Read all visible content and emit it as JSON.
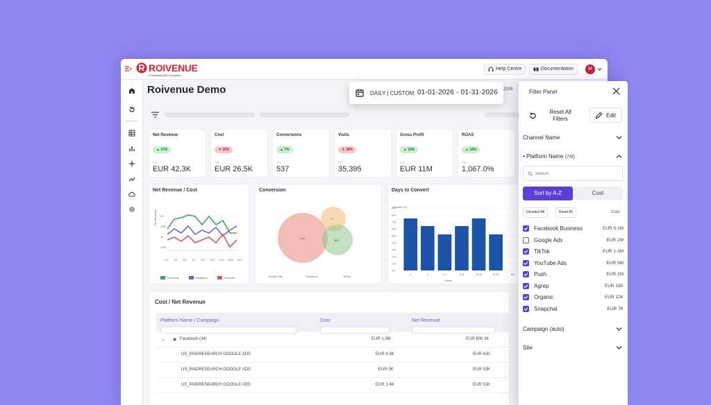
{
  "brand": {
    "name": "ROIVENUE",
    "tagline": "A ScanmarQED Company"
  },
  "header": {
    "help_label": "Help Centre",
    "docs_label": "Documentation",
    "avatar_initial": "M"
  },
  "page": {
    "title": "Roivenue Demo",
    "date_suffix": "2026"
  },
  "date_picker": {
    "mode": "DAILY | CUSTOM",
    "range": "01-01-2026 - 01-31-2026"
  },
  "kpis": [
    {
      "title": "Net Revenue",
      "change": "▲ 15%",
      "trend": "up",
      "small": "Total",
      "value": "EUR 42,3K"
    },
    {
      "title": "Cost",
      "change": "▼ 26%",
      "trend": "down",
      "small": "Total",
      "value": "EUR 26,5K"
    },
    {
      "title": "Conversions",
      "change": "▲ 7%",
      "trend": "up",
      "small": "Total",
      "value": "537"
    },
    {
      "title": "Visits",
      "change": "▼ 38%",
      "trend": "down",
      "small": "Total",
      "value": "35,395"
    },
    {
      "title": "Gross Profit",
      "change": "▲ 18%",
      "trend": "up",
      "small": "Total",
      "value": "EUR 11M"
    },
    {
      "title": "ROAS",
      "change": "▲ 18%",
      "trend": "up",
      "small": "Total",
      "value": "1,067.0%"
    }
  ],
  "charts": {
    "net_revenue_cost": {
      "title": "Net Revenue / Cost",
      "ylabel": "Net Revenue",
      "x_ticks": [
        "1/1",
        "1/3",
        "1/5",
        "1/7",
        "1/9",
        "1/11",
        "1/13",
        "1/15",
        "1/17"
      ],
      "legend": [
        "Facebook",
        "Instagram",
        "Pinterest"
      ],
      "y_ticks": [
        "2K",
        "1.5K",
        "1K",
        "0.5K"
      ],
      "colors": {
        "Facebook": "#3ea35a",
        "Instagram": "#6b63c9",
        "Pinterest": "#d65a5a"
      }
    },
    "conversion": {
      "title": "Conversion",
      "bubbles": [
        {
          "label": "1.4K",
          "color": "#e8877a"
        },
        {
          "label": "94",
          "color": "#f2c27a"
        },
        {
          "label": "300",
          "color": "#93c48f"
        }
      ],
      "legend": [
        "Google Ads",
        "Facebook",
        "TikTok"
      ]
    },
    "days_to_convert": {
      "title": "Days to Convert",
      "ylabel": "Number (%)",
      "y_top": "90%",
      "y_ticks": [
        "90%",
        "80%",
        "70%",
        "60%",
        "50%",
        "40%",
        "30%",
        "20%",
        "10%",
        "0%"
      ],
      "xlabel": "Week",
      "bar_color": "#1c53a6"
    }
  },
  "chart_data": {
    "type": "bar",
    "title": "Days to Convert",
    "xlabel": "Week",
    "ylabel": "Number (%)",
    "categories": [
      "1",
      "2",
      "3-7",
      "8-14",
      "15-30",
      "31-60",
      "61+"
    ],
    "values": [
      75,
      64,
      52,
      64,
      75,
      52,
      0
    ],
    "ylim": [
      0,
      90
    ]
  },
  "table": {
    "title": "Cost / Net Revenue",
    "columns": [
      "Platform Name / Campaign",
      "Cost",
      "Net Revenue"
    ],
    "rows": [
      {
        "name": "Facebook (34)",
        "cost": "EUR 1.3M",
        "revenue": "EUR 800.3K"
      },
      {
        "name": "US_PAIDRESEARCH GOOGLE ADS",
        "cost": "EUR 8.4K",
        "revenue": "EUR 42K"
      },
      {
        "name": "US_PAIDRESEARCH GOOGLE ADS",
        "cost": "EUR 5K",
        "revenue": "EUR 53K"
      },
      {
        "name": "US_PAIDRESEARCH GOOGLE ADS",
        "cost": "EUR 1.4K",
        "revenue": "EUR 53K"
      }
    ]
  },
  "filter_panel": {
    "title": "Filter Panel",
    "reset_label": "Reset All Filters",
    "edit_label": "Edit",
    "channel_label": "Channel Name",
    "platform_label": "• Platform Name",
    "platform_count": "(7/8)",
    "search_placeholder": "Search",
    "sort_a": "Sort by A-Z",
    "sort_b": "Cost",
    "unselect_all": "Unselect All",
    "reset_all": "Reset All",
    "cost_header": "Cost",
    "items": [
      {
        "label": "Facebook Business",
        "value": "EUR 5.1M",
        "checked": true
      },
      {
        "label": "Google Ads",
        "value": "EUR 2M",
        "checked": false
      },
      {
        "label": "TikTok",
        "value": "EUR 1.3M",
        "checked": true
      },
      {
        "label": "YouTube Ads",
        "value": "EUR 5M",
        "checked": true
      },
      {
        "label": "Push",
        "value": "EUR 2M",
        "checked": true
      },
      {
        "label": "Agrep",
        "value": "EUR 15K",
        "checked": true
      },
      {
        "label": "Organic",
        "value": "EUR 12K",
        "checked": true
      },
      {
        "label": "Snapchat",
        "value": "EUR 7K",
        "checked": true
      }
    ],
    "campaign_label": "Campaign (auto)",
    "site_label": "Site"
  }
}
